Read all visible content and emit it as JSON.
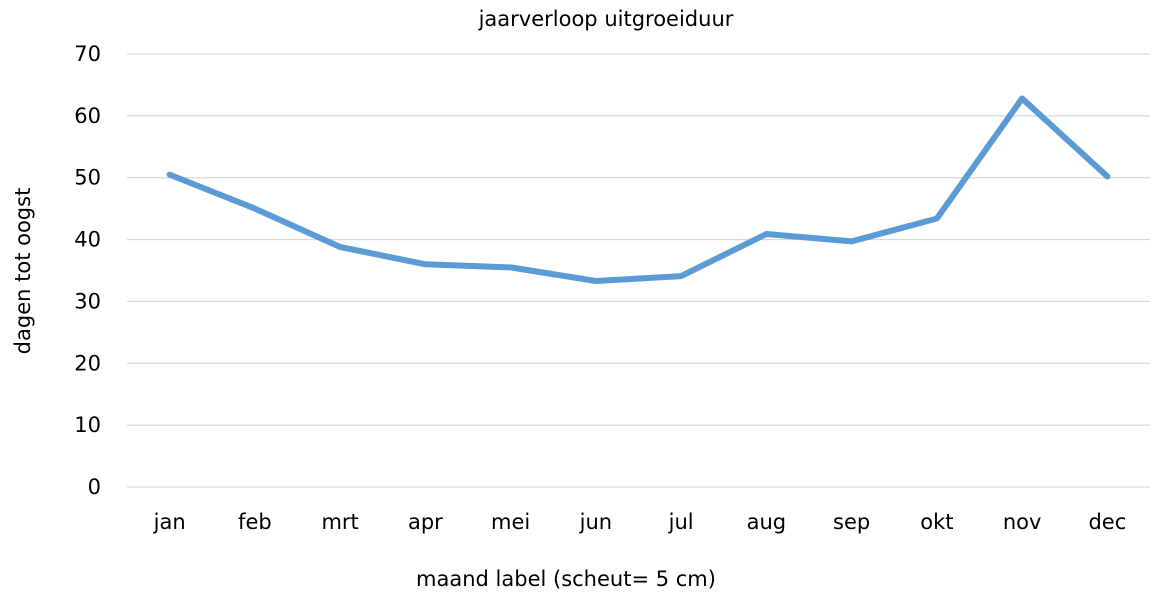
{
  "chart_data": {
    "type": "line",
    "title": "jaarverloop uitgroeiduur",
    "xlabel": "maand label (scheut= 5 cm)",
    "ylabel": "dagen tot oogst",
    "categories": [
      "jan",
      "feb",
      "mrt",
      "apr",
      "mei",
      "jun",
      "jul",
      "aug",
      "sep",
      "okt",
      "nov",
      "dec"
    ],
    "series": [
      {
        "values": [
          50.5,
          45,
          38.8,
          36,
          35.5,
          33.3,
          34.1,
          40.9,
          39.7,
          43.4,
          62.8,
          50.2
        ],
        "color": "#5b9bd5"
      }
    ],
    "ylim": [
      0,
      70
    ],
    "yticks": [
      0,
      10,
      20,
      30,
      40,
      50,
      60,
      70
    ],
    "grid": true,
    "legend": "none"
  }
}
